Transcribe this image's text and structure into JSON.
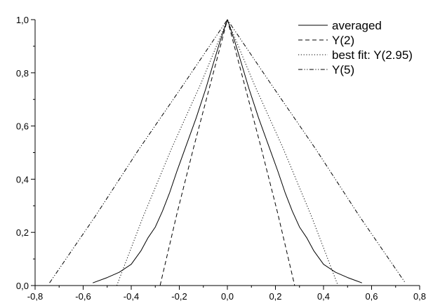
{
  "chart_data": {
    "type": "line",
    "title": "",
    "xlabel": "",
    "ylabel": "",
    "xlim": [
      -0.8,
      0.8
    ],
    "ylim": [
      0.0,
      1.0
    ],
    "grid": false,
    "legend_position": "top-right",
    "x_ticks": [
      "-0,8",
      "-0,6",
      "-0,4",
      "-0,2",
      "0,0",
      "0,2",
      "0,4",
      "0,6",
      "0,8"
    ],
    "y_ticks": [
      "0,0",
      "0,2",
      "0,4",
      "0,6",
      "0,8",
      "1,0"
    ],
    "series": [
      {
        "name": "averaged",
        "style": "solid",
        "color": "#000000",
        "x": [
          -0.56,
          -0.5,
          -0.45,
          -0.4,
          -0.36,
          -0.33,
          -0.3,
          -0.27,
          -0.24,
          -0.21,
          -0.17,
          -0.13,
          -0.09,
          -0.06,
          -0.03,
          0.0,
          0.03,
          0.06,
          0.09,
          0.13,
          0.17,
          0.21,
          0.24,
          0.27,
          0.3,
          0.33,
          0.36,
          0.4,
          0.45,
          0.5,
          0.56
        ],
        "y": [
          0.01,
          0.03,
          0.05,
          0.08,
          0.13,
          0.18,
          0.22,
          0.28,
          0.35,
          0.43,
          0.53,
          0.63,
          0.74,
          0.83,
          0.92,
          1.0,
          0.92,
          0.83,
          0.74,
          0.63,
          0.53,
          0.43,
          0.35,
          0.28,
          0.22,
          0.18,
          0.13,
          0.08,
          0.05,
          0.03,
          0.01
        ]
      },
      {
        "name": "Y(2)",
        "style": "dashed",
        "color": "#000000",
        "x": [
          -0.28,
          -0.21,
          -0.14,
          -0.07,
          0.0,
          0.07,
          0.14,
          0.21,
          0.28
        ],
        "y": [
          0.0,
          0.27,
          0.52,
          0.76,
          1.0,
          0.76,
          0.52,
          0.27,
          0.0
        ]
      },
      {
        "name": "best fit: Y(2.95)",
        "style": "dotted",
        "color": "#000000",
        "x": [
          -0.46,
          -0.35,
          -0.23,
          -0.11,
          0.0,
          0.11,
          0.23,
          0.35,
          0.46
        ],
        "y": [
          0.0,
          0.26,
          0.52,
          0.76,
          1.0,
          0.76,
          0.52,
          0.26,
          0.0
        ]
      },
      {
        "name": "Y(5)",
        "style": "dashdotdot",
        "color": "#000000",
        "x": [
          -0.74,
          -0.55,
          -0.37,
          -0.18,
          0.0,
          0.18,
          0.37,
          0.55,
          0.74
        ],
        "y": [
          0.01,
          0.26,
          0.51,
          0.76,
          1.0,
          0.76,
          0.51,
          0.26,
          0.01
        ]
      }
    ]
  }
}
